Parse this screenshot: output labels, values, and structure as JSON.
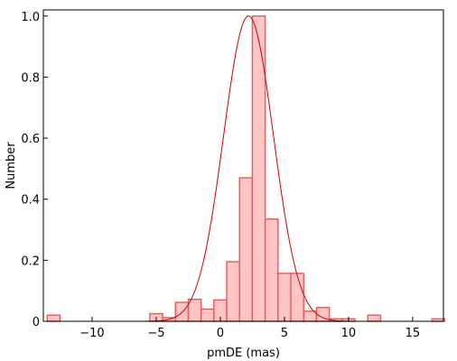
{
  "chart_data": {
    "type": "bar",
    "xlabel": "pmDE (mas)",
    "ylabel": "Number",
    "xlim": [
      -13.8,
      17.4
    ],
    "ylim": [
      0,
      1.02
    ],
    "xticks": [
      -10,
      -5,
      0,
      5,
      10,
      15
    ],
    "yticks": [
      0,
      0.2,
      0.4,
      0.6,
      0.8,
      1.0
    ],
    "xtick_labels": [
      "−10",
      "−5",
      "0",
      "5",
      "10",
      "15"
    ],
    "ytick_labels": [
      "0",
      "0.2",
      "0.4",
      "0.6",
      "0.8",
      "1.0"
    ],
    "bin_width": 1,
    "bins": [
      {
        "x": -13,
        "value": 0.02
      },
      {
        "x": -12,
        "value": 0
      },
      {
        "x": -11,
        "value": 0
      },
      {
        "x": -10,
        "value": 0
      },
      {
        "x": -9,
        "value": 0
      },
      {
        "x": -8,
        "value": 0
      },
      {
        "x": -7,
        "value": 0
      },
      {
        "x": -6,
        "value": 0
      },
      {
        "x": -5,
        "value": 0.025
      },
      {
        "x": -4,
        "value": 0.012
      },
      {
        "x": -3,
        "value": 0.062
      },
      {
        "x": -2,
        "value": 0.072
      },
      {
        "x": -1,
        "value": 0.04
      },
      {
        "x": 0,
        "value": 0.07
      },
      {
        "x": 1,
        "value": 0.195
      },
      {
        "x": 2,
        "value": 0.47
      },
      {
        "x": 3,
        "value": 1.0
      },
      {
        "x": 4,
        "value": 0.335
      },
      {
        "x": 5,
        "value": 0.157
      },
      {
        "x": 6,
        "value": 0.157
      },
      {
        "x": 7,
        "value": 0.033
      },
      {
        "x": 8,
        "value": 0.045
      },
      {
        "x": 9,
        "value": 0.008
      },
      {
        "x": 10,
        "value": 0.008
      },
      {
        "x": 11,
        "value": 0
      },
      {
        "x": 12,
        "value": 0.02
      },
      {
        "x": 13,
        "value": 0
      },
      {
        "x": 14,
        "value": 0
      },
      {
        "x": 15,
        "value": 0
      },
      {
        "x": 16,
        "value": 0
      },
      {
        "x": 17,
        "value": 0.008
      }
    ],
    "fit_curve": {
      "type": "gaussian",
      "mean": 2.2,
      "sigma": 1.95,
      "amplitude": 1.0
    },
    "colors": {
      "bar_fill": "#ffc4c4",
      "bar_edge": "#e65a5a",
      "curve": "#cc0000"
    },
    "grid": false,
    "legend": "none"
  }
}
